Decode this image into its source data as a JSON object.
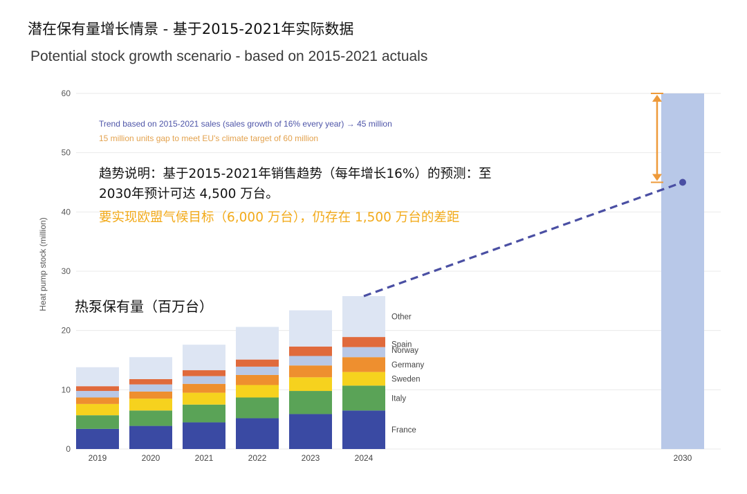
{
  "header": {
    "title_cn": "潜在保有量增长情景 - 基于2015-2021年实际数据",
    "title_en": "Potential stock growth scenario - based on 2015-2021 actuals"
  },
  "annotations": {
    "trend_en": "Trend based on 2015-2021 sales (sales growth of 16% every year) → 45 million",
    "gap_en": "15 million units gap to meet EU's climate target of 60 million",
    "trend_cn_line1": "趋势说明：基于2015-2021年销售趋势（每年增长16%）的预测：至",
    "trend_cn_line2": "2030年预计可达 4,500 万台。",
    "gap_cn": "要实现欧盟气候目标（6,000 万台），仍存在 1,500 万台的差距",
    "stock_cn": "热泵保有量（百万台）"
  },
  "colors": {
    "France": "#3a4aa3",
    "Italy": "#5aa357",
    "Sweden": "#f6d21e",
    "Germany": "#ee8f2f",
    "Norway": "#b9c8e6",
    "Spain": "#e06a3c",
    "Other": "#dde5f3",
    "target_bar": "#b8c8e8",
    "trend_line": "#4a4fa3",
    "gap_arrow": "#ee9a3a"
  },
  "chart_data": {
    "type": "bar",
    "stacked": true,
    "ylabel": "Heat pump stock (million)",
    "ylim": [
      0,
      60
    ],
    "yticks": [
      0,
      10,
      20,
      30,
      40,
      50,
      60
    ],
    "grid": true,
    "categories": [
      "2019",
      "2020",
      "2021",
      "2022",
      "2023",
      "2024"
    ],
    "series": [
      {
        "name": "France",
        "values": [
          3.4,
          3.9,
          4.5,
          5.2,
          5.9,
          6.5
        ]
      },
      {
        "name": "Italy",
        "values": [
          2.3,
          2.6,
          3.0,
          3.5,
          3.9,
          4.2
        ]
      },
      {
        "name": "Sweden",
        "values": [
          1.9,
          2.0,
          2.0,
          2.1,
          2.3,
          2.3
        ]
      },
      {
        "name": "Germany",
        "values": [
          1.1,
          1.2,
          1.5,
          1.7,
          2.0,
          2.5
        ]
      },
      {
        "name": "Norway",
        "values": [
          1.1,
          1.2,
          1.3,
          1.4,
          1.6,
          1.7
        ]
      },
      {
        "name": "Spain",
        "values": [
          0.8,
          0.9,
          1.0,
          1.2,
          1.6,
          1.7
        ]
      },
      {
        "name": "Other",
        "values": [
          3.2,
          3.7,
          4.3,
          5.5,
          6.1,
          6.9
        ]
      }
    ],
    "target": {
      "category": "2030",
      "value": 60
    },
    "trend": {
      "from_year": "2024",
      "from_value": 25.8,
      "to_year": "2030",
      "to_value": 45
    },
    "gap": {
      "from": 45,
      "to": 60
    }
  }
}
